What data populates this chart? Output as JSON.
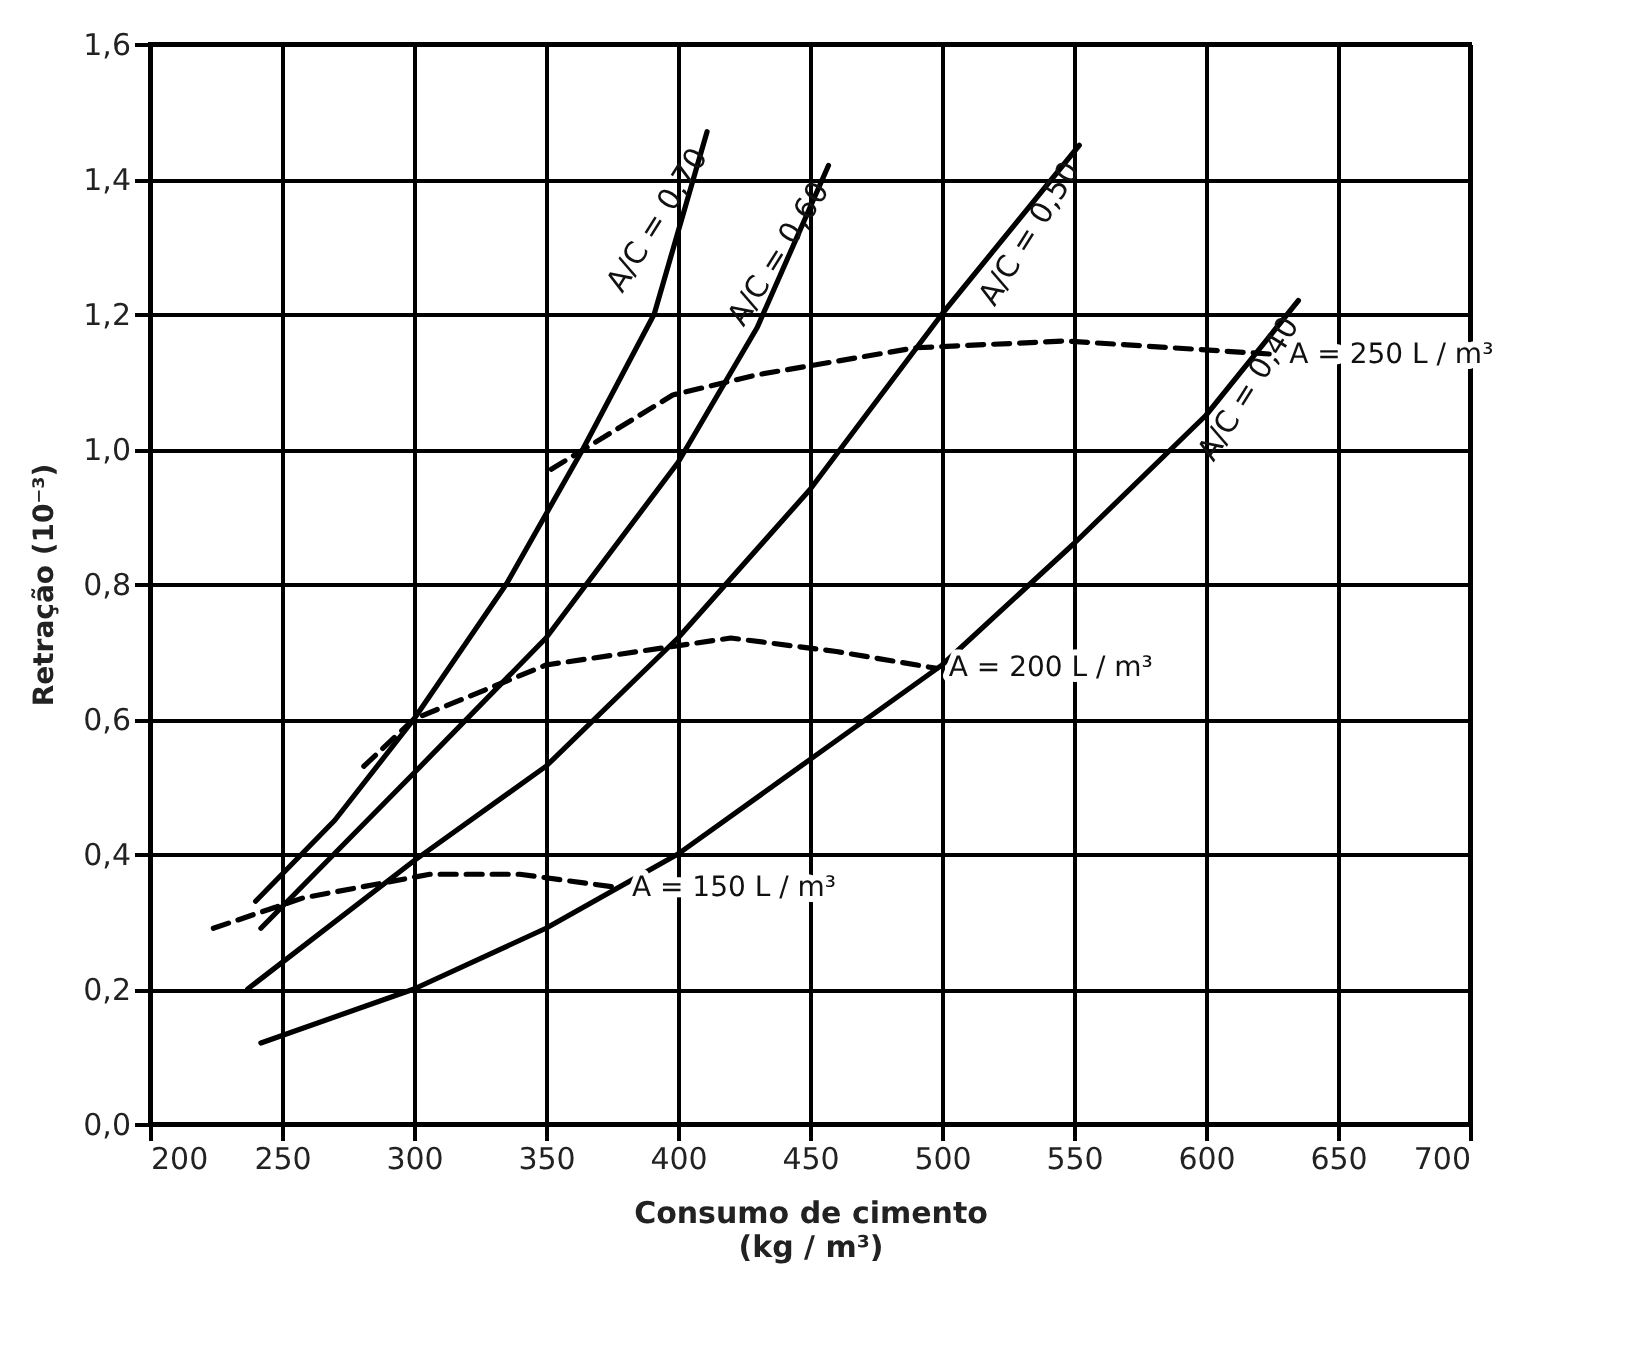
{
  "chart_data": {
    "type": "line",
    "xlabel": "Consumo de cimento\n(kg / m³)",
    "ylabel": "Retração (10⁻³)",
    "xlim": [
      200,
      700
    ],
    "ylim": [
      0,
      1.6
    ],
    "xticks": [
      200,
      250,
      300,
      350,
      400,
      450,
      500,
      550,
      600,
      650,
      700
    ],
    "yticks": [
      {
        "value": 0,
        "label": "0,0"
      },
      {
        "value": 0.2,
        "label": "0,2"
      },
      {
        "value": 0.4,
        "label": "0,4"
      },
      {
        "value": 0.6,
        "label": "0,6"
      },
      {
        "value": 0.8,
        "label": "0,8"
      },
      {
        "value": 1.0,
        "label": "1,0"
      },
      {
        "value": 1.2,
        "label": "1,2"
      },
      {
        "value": 1.4,
        "label": "1,4"
      },
      {
        "value": 1.6,
        "label": "1,6"
      }
    ],
    "grid": true,
    "marker": "none",
    "series": [
      {
        "name": "A/C = 0,70",
        "color": "#000000",
        "line_style": "solid",
        "x": [
          240,
          270,
          300,
          335,
          364,
          391,
          411
        ],
        "values": [
          0.33,
          0.45,
          0.6,
          0.8,
          1.0,
          1.2,
          1.47
        ]
      },
      {
        "name": "A/C = 0,60",
        "color": "#000000",
        "line_style": "solid",
        "x": [
          242,
          300,
          350,
          400,
          430,
          457
        ],
        "values": [
          0.29,
          0.52,
          0.72,
          0.98,
          1.18,
          1.42
        ]
      },
      {
        "name": "A/C = 0,50",
        "color": "#000000",
        "line_style": "solid",
        "x": [
          237,
          300,
          350,
          400,
          450,
          500,
          552
        ],
        "values": [
          0.2,
          0.39,
          0.53,
          0.72,
          0.94,
          1.2,
          1.45
        ]
      },
      {
        "name": "A/C = 0,40",
        "color": "#000000",
        "line_style": "solid",
        "x": [
          242,
          300,
          350,
          400,
          450,
          500,
          550,
          600,
          635
        ],
        "values": [
          0.12,
          0.2,
          0.29,
          0.4,
          0.54,
          0.68,
          0.86,
          1.05,
          1.22
        ]
      },
      {
        "name": "A = 150 L / m³",
        "color": "#000000",
        "line_style": "dashed",
        "x": [
          224,
          258,
          306,
          340,
          378
        ],
        "values": [
          0.29,
          0.335,
          0.37,
          0.37,
          0.35
        ]
      },
      {
        "name": "A = 200 L / m³",
        "color": "#000000",
        "line_style": "dashed",
        "x": [
          281,
          300,
          350,
          420,
          460,
          498
        ],
        "values": [
          0.53,
          0.6,
          0.68,
          0.72,
          0.7,
          0.675
        ]
      },
      {
        "name": "A = 250 L / m³",
        "color": "#000000",
        "line_style": "dashed",
        "x": [
          352,
          398,
          430,
          490,
          547,
          627
        ],
        "values": [
          0.97,
          1.08,
          1.11,
          1.15,
          1.16,
          1.14
        ]
      }
    ]
  }
}
